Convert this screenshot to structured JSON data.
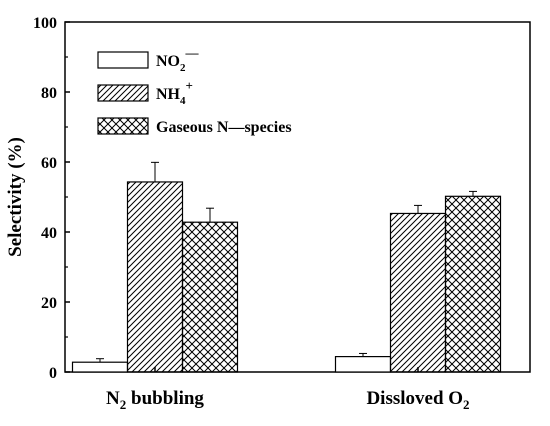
{
  "chart_data": {
    "type": "bar",
    "title": "",
    "xlabel": "",
    "ylabel": "Selectivity (%)",
    "ylim": [
      0,
      100
    ],
    "yticks": [
      "0",
      "20",
      "40",
      "60",
      "80",
      "100"
    ],
    "categories": [
      {
        "main": "N",
        "sub": "2",
        "rest": " bubbling"
      },
      {
        "main": "Dissloved O",
        "sub": "2",
        "rest": ""
      }
    ],
    "series": [
      {
        "name_main": "NO",
        "name_sub": "2",
        "name_sup": "—",
        "name_rest": "",
        "pattern": "none",
        "values": [
          2.8,
          4.4
        ],
        "errors": [
          1.0,
          0.9
        ]
      },
      {
        "name_main": "NH",
        "name_sub": "4",
        "name_sup": "+",
        "name_rest": "",
        "pattern": "diagonal",
        "values": [
          54.3,
          45.3
        ],
        "errors": [
          5.6,
          2.3
        ]
      },
      {
        "name_main": "Gaseous N—species",
        "name_sub": "",
        "name_sup": "",
        "name_rest": "",
        "pattern": "crosshatch",
        "values": [
          42.8,
          50.2
        ],
        "errors": [
          4.0,
          1.4
        ]
      }
    ],
    "legend_position": "top-left",
    "grid": false
  }
}
